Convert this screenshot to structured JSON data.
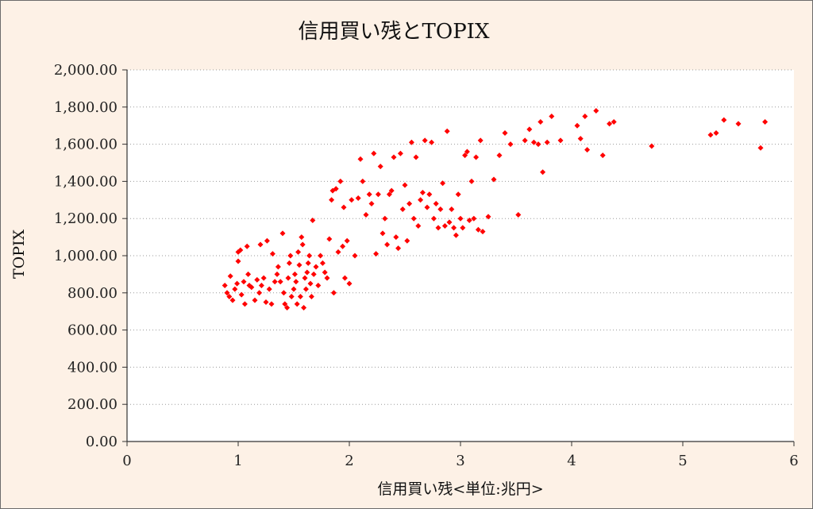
{
  "chart_data": {
    "type": "scatter",
    "title": "信用買い残とTOPIX",
    "xlabel": "信用買い残<単位:兆円>",
    "ylabel": "TOPIX",
    "xlim": [
      0,
      6
    ],
    "ylim": [
      0,
      2000
    ],
    "x_ticks": [
      "0",
      "1",
      "2",
      "3",
      "4",
      "5",
      "6"
    ],
    "y_ticks": [
      "0.00",
      "200.00",
      "400.00",
      "600.00",
      "800.00",
      "1,000.00",
      "1,200.00",
      "1,400.00",
      "1,600.00",
      "1,800.00",
      "2,000.00"
    ],
    "grid": "horizontal-dotted",
    "legend": "none",
    "marker_color": "#ff0000",
    "points": [
      [
        0.88,
        840
      ],
      [
        0.9,
        800
      ],
      [
        0.92,
        780
      ],
      [
        0.93,
        890
      ],
      [
        0.95,
        760
      ],
      [
        0.97,
        820
      ],
      [
        0.99,
        850
      ],
      [
        1.0,
        1020
      ],
      [
        1.0,
        970
      ],
      [
        1.02,
        1030
      ],
      [
        1.03,
        790
      ],
      [
        1.05,
        860
      ],
      [
        1.06,
        740
      ],
      [
        1.08,
        1050
      ],
      [
        1.09,
        900
      ],
      [
        1.1,
        840
      ],
      [
        1.12,
        830
      ],
      [
        1.15,
        760
      ],
      [
        1.17,
        870
      ],
      [
        1.19,
        800
      ],
      [
        1.2,
        1060
      ],
      [
        1.21,
        840
      ],
      [
        1.23,
        880
      ],
      [
        1.25,
        750
      ],
      [
        1.26,
        1080
      ],
      [
        1.28,
        820
      ],
      [
        1.3,
        740
      ],
      [
        1.31,
        1010
      ],
      [
        1.33,
        860
      ],
      [
        1.35,
        900
      ],
      [
        1.36,
        940
      ],
      [
        1.38,
        860
      ],
      [
        1.4,
        1120
      ],
      [
        1.41,
        800
      ],
      [
        1.42,
        740
      ],
      [
        1.44,
        720
      ],
      [
        1.45,
        880
      ],
      [
        1.46,
        960
      ],
      [
        1.47,
        1000
      ],
      [
        1.48,
        780
      ],
      [
        1.5,
        820
      ],
      [
        1.51,
        900
      ],
      [
        1.52,
        860
      ],
      [
        1.53,
        740
      ],
      [
        1.54,
        1020
      ],
      [
        1.55,
        950
      ],
      [
        1.56,
        780
      ],
      [
        1.57,
        1100
      ],
      [
        1.58,
        1060
      ],
      [
        1.59,
        720
      ],
      [
        1.6,
        880
      ],
      [
        1.61,
        820
      ],
      [
        1.62,
        910
      ],
      [
        1.63,
        960
      ],
      [
        1.64,
        1000
      ],
      [
        1.65,
        850
      ],
      [
        1.66,
        780
      ],
      [
        1.67,
        1190
      ],
      [
        1.68,
        900
      ],
      [
        1.7,
        940
      ],
      [
        1.72,
        840
      ],
      [
        1.74,
        1000
      ],
      [
        1.76,
        960
      ],
      [
        1.78,
        910
      ],
      [
        1.8,
        880
      ],
      [
        1.82,
        1090
      ],
      [
        1.84,
        1300
      ],
      [
        1.85,
        1350
      ],
      [
        1.86,
        800
      ],
      [
        1.88,
        1360
      ],
      [
        1.9,
        1020
      ],
      [
        1.92,
        1400
      ],
      [
        1.94,
        1050
      ],
      [
        1.95,
        1260
      ],
      [
        1.96,
        880
      ],
      [
        1.98,
        1080
      ],
      [
        2.0,
        850
      ],
      [
        2.02,
        1300
      ],
      [
        2.05,
        1000
      ],
      [
        2.08,
        1310
      ],
      [
        2.1,
        1520
      ],
      [
        2.12,
        1400
      ],
      [
        2.15,
        1220
      ],
      [
        2.18,
        1330
      ],
      [
        2.2,
        1280
      ],
      [
        2.22,
        1550
      ],
      [
        2.24,
        1010
      ],
      [
        2.26,
        1330
      ],
      [
        2.28,
        1480
      ],
      [
        2.3,
        1120
      ],
      [
        2.32,
        1200
      ],
      [
        2.34,
        1060
      ],
      [
        2.36,
        1330
      ],
      [
        2.38,
        1350
      ],
      [
        2.4,
        1530
      ],
      [
        2.42,
        1100
      ],
      [
        2.44,
        1040
      ],
      [
        2.46,
        1550
      ],
      [
        2.48,
        1250
      ],
      [
        2.5,
        1380
      ],
      [
        2.52,
        1080
      ],
      [
        2.54,
        1280
      ],
      [
        2.56,
        1610
      ],
      [
        2.58,
        1200
      ],
      [
        2.6,
        1530
      ],
      [
        2.62,
        1160
      ],
      [
        2.64,
        1300
      ],
      [
        2.66,
        1340
      ],
      [
        2.68,
        1620
      ],
      [
        2.7,
        1260
      ],
      [
        2.72,
        1330
      ],
      [
        2.74,
        1610
      ],
      [
        2.76,
        1200
      ],
      [
        2.78,
        1280
      ],
      [
        2.8,
        1150
      ],
      [
        2.82,
        1250
      ],
      [
        2.84,
        1390
      ],
      [
        2.86,
        1160
      ],
      [
        2.88,
        1670
      ],
      [
        2.9,
        1180
      ],
      [
        2.92,
        1250
      ],
      [
        2.94,
        1150
      ],
      [
        2.96,
        1110
      ],
      [
        2.98,
        1330
      ],
      [
        3.0,
        1200
      ],
      [
        3.02,
        1150
      ],
      [
        3.04,
        1540
      ],
      [
        3.06,
        1560
      ],
      [
        3.08,
        1190
      ],
      [
        3.1,
        1400
      ],
      [
        3.12,
        1200
      ],
      [
        3.14,
        1530
      ],
      [
        3.16,
        1140
      ],
      [
        3.18,
        1620
      ],
      [
        3.2,
        1130
      ],
      [
        3.25,
        1210
      ],
      [
        3.3,
        1410
      ],
      [
        3.35,
        1540
      ],
      [
        3.4,
        1660
      ],
      [
        3.45,
        1600
      ],
      [
        3.52,
        1220
      ],
      [
        3.58,
        1620
      ],
      [
        3.62,
        1680
      ],
      [
        3.66,
        1610
      ],
      [
        3.7,
        1600
      ],
      [
        3.72,
        1720
      ],
      [
        3.74,
        1450
      ],
      [
        3.78,
        1610
      ],
      [
        3.82,
        1750
      ],
      [
        3.9,
        1620
      ],
      [
        4.05,
        1700
      ],
      [
        4.08,
        1630
      ],
      [
        4.12,
        1750
      ],
      [
        4.14,
        1570
      ],
      [
        4.22,
        1780
      ],
      [
        4.28,
        1540
      ],
      [
        4.34,
        1710
      ],
      [
        4.38,
        1720
      ],
      [
        4.72,
        1590
      ],
      [
        5.25,
        1650
      ],
      [
        5.3,
        1660
      ],
      [
        5.37,
        1730
      ],
      [
        5.5,
        1710
      ],
      [
        5.7,
        1580
      ],
      [
        5.74,
        1720
      ]
    ]
  }
}
